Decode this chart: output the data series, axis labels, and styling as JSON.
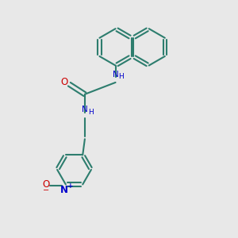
{
  "bg_color": "#e8e8e8",
  "bc": "#2d7d6e",
  "bw": 1.5,
  "nc": "#0000cc",
  "oc": "#cc0000",
  "figsize": [
    3.0,
    3.0
  ],
  "dpi": 100,
  "xlim": [
    0,
    10
  ],
  "ylim": [
    0,
    10
  ]
}
